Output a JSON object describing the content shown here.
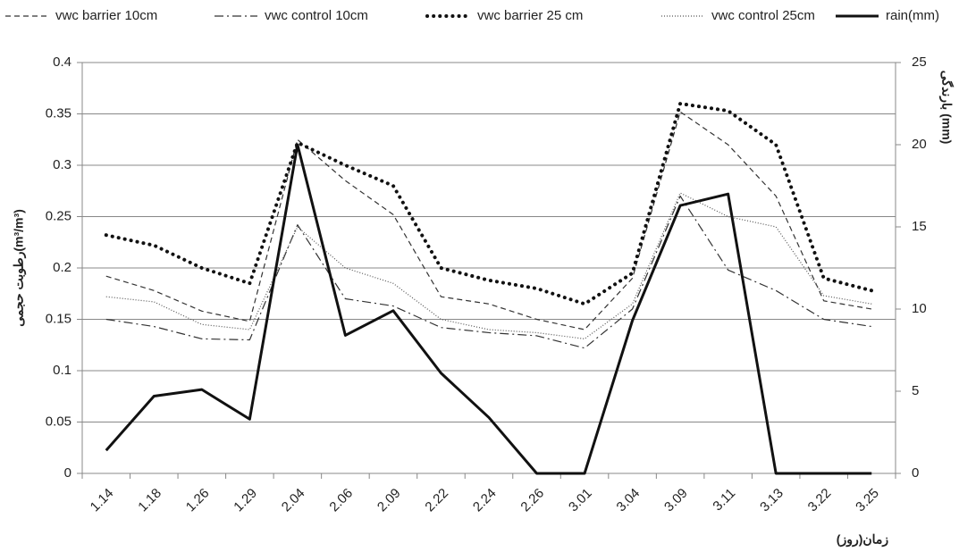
{
  "chart_data": {
    "type": "line",
    "categories": [
      "1.14",
      "1.18",
      "1.26",
      "1.29",
      "2.04",
      "2.06",
      "2.09",
      "2.22",
      "2.24",
      "2.26",
      "3.01",
      "3.04",
      "3.09",
      "3.11",
      "3.13",
      "3.22",
      "3.25"
    ],
    "x_label": "زمان(روز)",
    "y_label": "رطوبت حجمی(m³/m³)",
    "y2_label": "بارندگی (mm)",
    "ylim": [
      0,
      0.4
    ],
    "yticks": [
      0,
      0.05,
      0.1,
      0.15,
      0.2,
      0.25,
      0.3,
      0.35,
      0.4
    ],
    "y2lim": [
      0,
      25
    ],
    "y2ticks": [
      0,
      5,
      10,
      15,
      20,
      25
    ],
    "grid": true,
    "series": [
      {
        "name": "vwc  barrier 10cm",
        "color": "#333333",
        "line_style": "dashed",
        "values": [
          0.192,
          0.178,
          0.158,
          0.148,
          0.325,
          0.285,
          0.252,
          0.172,
          0.165,
          0.15,
          0.14,
          0.19,
          0.352,
          0.32,
          0.27,
          0.168,
          0.16
        ]
      },
      {
        "name": "vwc  control 10cm",
        "color": "#333333",
        "line_style": "dashdot",
        "values": [
          0.15,
          0.143,
          0.131,
          0.13,
          0.242,
          0.17,
          0.163,
          0.142,
          0.137,
          0.134,
          0.122,
          0.16,
          0.27,
          0.198,
          0.178,
          0.15,
          0.143
        ]
      },
      {
        "name": "vwc  barrier 25 cm",
        "color": "#111111",
        "line_style": "dotted",
        "values": [
          0.232,
          0.222,
          0.2,
          0.185,
          0.322,
          0.3,
          0.28,
          0.2,
          0.188,
          0.18,
          0.165,
          0.195,
          0.36,
          0.353,
          0.32,
          0.19,
          0.178
        ]
      },
      {
        "name": "vwc  control 25cm",
        "color": "#555555",
        "line_style": "finedotted",
        "values": [
          0.172,
          0.167,
          0.145,
          0.14,
          0.24,
          0.2,
          0.185,
          0.15,
          0.14,
          0.137,
          0.131,
          0.165,
          0.273,
          0.25,
          0.24,
          0.173,
          0.165
        ]
      },
      {
        "name": "rain(mm)",
        "color": "#111111",
        "line_style": "solid",
        "axis": "y2",
        "values": [
          1.4,
          4.7,
          5.1,
          3.3,
          20,
          8.4,
          9.9,
          6.1,
          3.4,
          0,
          0,
          9.3,
          16.3,
          17,
          0,
          0,
          0
        ]
      }
    ]
  }
}
